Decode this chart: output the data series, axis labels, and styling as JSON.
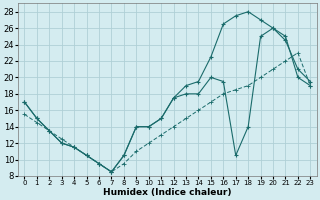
{
  "xlabel": "Humidex (Indice chaleur)",
  "bg_color": "#d4ecf0",
  "grid_color": "#afd0d6",
  "line_color": "#1a6b6b",
  "xlim": [
    -0.5,
    23.5
  ],
  "ylim": [
    8,
    29
  ],
  "xticks": [
    0,
    1,
    2,
    3,
    4,
    5,
    6,
    7,
    8,
    9,
    10,
    11,
    12,
    13,
    14,
    15,
    16,
    17,
    18,
    19,
    20,
    21,
    22,
    23
  ],
  "yticks": [
    8,
    10,
    12,
    14,
    16,
    18,
    20,
    22,
    24,
    26,
    28
  ],
  "line1_x": [
    0,
    1,
    2,
    3,
    4,
    5,
    6,
    7,
    8,
    9,
    10,
    11,
    12,
    13,
    14,
    15,
    16,
    17,
    18,
    19,
    20,
    21,
    22,
    23
  ],
  "line1_y": [
    17,
    15,
    13.5,
    12,
    11.5,
    10.5,
    9.5,
    8.5,
    10.5,
    14,
    14,
    15,
    17.5,
    18,
    18,
    20,
    19.5,
    10.5,
    14,
    25,
    26,
    24.5,
    21,
    19.5
  ],
  "line2_x": [
    0,
    1,
    2,
    3,
    4,
    5,
    6,
    7,
    8,
    9,
    10,
    11,
    12,
    13,
    14,
    15,
    16,
    17,
    18,
    19,
    20,
    21,
    22,
    23
  ],
  "line2_y": [
    17,
    15,
    13.5,
    12,
    11.5,
    10.5,
    9.5,
    8.5,
    10.5,
    14,
    14,
    15,
    17.5,
    19,
    19.5,
    22.5,
    26.5,
    27.5,
    28,
    27,
    26,
    25,
    20,
    19
  ],
  "line3_x": [
    0,
    1,
    2,
    3,
    4,
    5,
    6,
    7,
    8,
    9,
    10,
    11,
    12,
    13,
    14,
    15,
    16,
    17,
    18,
    19,
    20,
    21,
    22,
    23
  ],
  "line3_y": [
    15.5,
    14.5,
    13.5,
    12.5,
    11.5,
    10.5,
    9.5,
    8.5,
    9.5,
    11,
    12,
    13,
    14,
    15,
    16,
    17,
    18,
    18.5,
    19,
    20,
    21,
    22,
    23,
    19
  ]
}
